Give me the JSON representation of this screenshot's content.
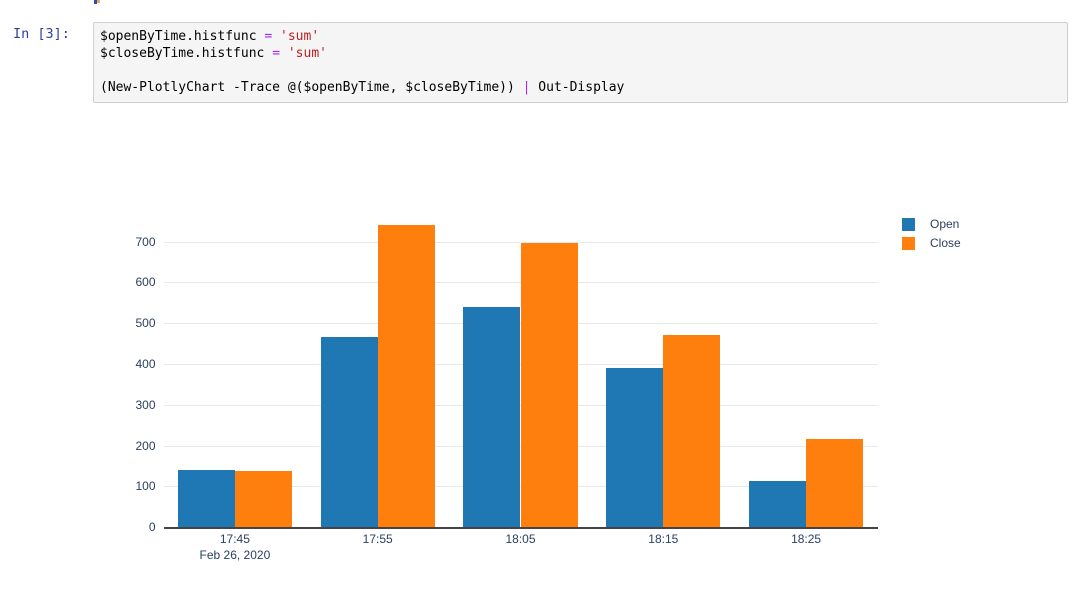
{
  "cell": {
    "prompt": "In [3]:",
    "code_lines": [
      [
        [
          "pl",
          "$openByTime.histfunc "
        ],
        [
          "op",
          "="
        ],
        [
          "pl",
          " "
        ],
        [
          "st",
          "'sum'"
        ]
      ],
      [
        [
          "pl",
          "$closeByTime.histfunc "
        ],
        [
          "op",
          "="
        ],
        [
          "pl",
          " "
        ],
        [
          "st",
          "'sum'"
        ]
      ],
      [],
      [
        [
          "pl",
          "(New-PlotlyChart -Trace @($openByTime, $closeByTime)) "
        ],
        [
          "op",
          "|"
        ],
        [
          "pl",
          " Out-Display"
        ]
      ]
    ]
  },
  "chart_data": {
    "type": "bar",
    "title": "",
    "categories": [
      "17:45",
      "17:55",
      "18:05",
      "18:15",
      "18:25"
    ],
    "x_subtitle": "Feb 26, 2020",
    "series": [
      {
        "name": "Open",
        "color": "#1f77b4",
        "values": [
          140,
          465,
          540,
          390,
          113
        ]
      },
      {
        "name": "Close",
        "color": "#ff7f0e",
        "values": [
          137,
          742,
          698,
          470,
          215
        ]
      }
    ],
    "xlabel": "",
    "ylabel": "",
    "yticks": [
      0,
      100,
      200,
      300,
      400,
      500,
      600,
      700
    ],
    "ylim": [
      0,
      785
    ],
    "grid": true,
    "legend_position": "top-right",
    "background": "#ffffff",
    "grid_color": "#e9e9e9",
    "axis_line_color": "#444444",
    "tick_label_color": "#2a3f5f"
  }
}
